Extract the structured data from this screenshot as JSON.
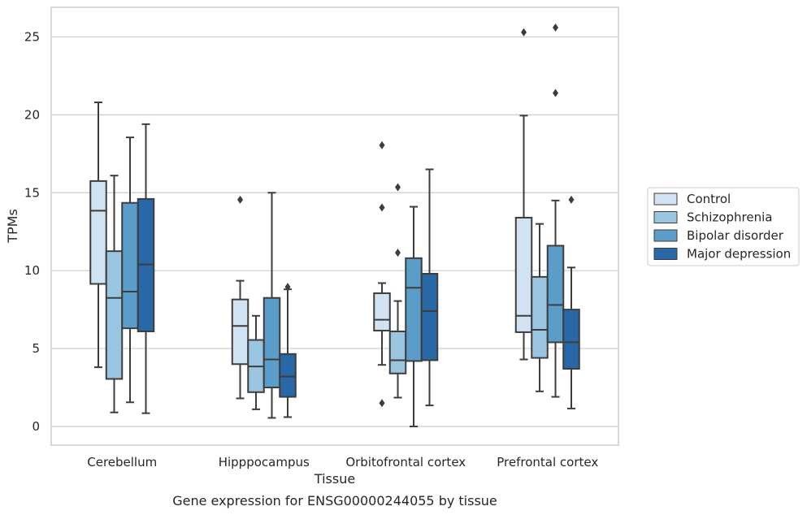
{
  "chart_data": {
    "type": "box",
    "title": "",
    "caption": "Gene expression for ENSG00000244055 by tissue",
    "xlabel": "Tissue",
    "ylabel": "TPMs",
    "ylim": [
      -1.2,
      26.9
    ],
    "yticks": [
      0,
      5,
      10,
      15,
      20,
      25
    ],
    "grid": true,
    "legend_position": "right",
    "categories": [
      "Cerebellum",
      "Hipppocampus",
      "Orbitofrontal cortex",
      "Prefrontal cortex"
    ],
    "series": [
      {
        "name": "Control",
        "color": "#d1e2f2",
        "boxes": [
          {
            "whislo": 3.8,
            "q1": 9.15,
            "med": 13.85,
            "q3": 15.75,
            "whishi": 20.8,
            "fliers": []
          },
          {
            "whislo": 1.8,
            "q1": 4.0,
            "med": 6.45,
            "q3": 8.15,
            "whishi": 9.35,
            "fliers": [
              14.55
            ]
          },
          {
            "whislo": 3.95,
            "q1": 6.15,
            "med": 6.85,
            "q3": 8.55,
            "whishi": 9.2,
            "fliers": [
              18.05,
              14.05,
              1.5
            ]
          },
          {
            "whislo": 4.3,
            "q1": 6.05,
            "med": 7.1,
            "q3": 13.4,
            "whishi": 19.95,
            "fliers": [
              25.3
            ]
          }
        ]
      },
      {
        "name": "Schizophrenia",
        "color": "#9ac5e0",
        "boxes": [
          {
            "whislo": 0.9,
            "q1": 3.05,
            "med": 8.25,
            "q3": 11.25,
            "whishi": 16.1,
            "fliers": []
          },
          {
            "whislo": 1.1,
            "q1": 2.2,
            "med": 3.85,
            "q3": 5.55,
            "whishi": 7.1,
            "fliers": []
          },
          {
            "whislo": 1.85,
            "q1": 3.4,
            "med": 4.25,
            "q3": 6.1,
            "whishi": 8.05,
            "fliers": [
              15.35,
              11.15
            ]
          },
          {
            "whislo": 2.25,
            "q1": 4.4,
            "med": 6.2,
            "q3": 9.6,
            "whishi": 13.0,
            "fliers": []
          }
        ]
      },
      {
        "name": "Bipolar disorder",
        "color": "#5a9dc8",
        "boxes": [
          {
            "whislo": 1.55,
            "q1": 6.3,
            "med": 8.65,
            "q3": 14.35,
            "whishi": 18.55,
            "fliers": []
          },
          {
            "whislo": 0.55,
            "q1": 2.5,
            "med": 4.3,
            "q3": 8.25,
            "whishi": 15.0,
            "fliers": []
          },
          {
            "whislo": 0.0,
            "q1": 4.2,
            "med": 8.9,
            "q3": 10.8,
            "whishi": 14.1,
            "fliers": []
          },
          {
            "whislo": 1.9,
            "q1": 5.4,
            "med": 7.8,
            "q3": 11.6,
            "whishi": 14.5,
            "fliers": [
              25.6,
              21.4
            ]
          }
        ]
      },
      {
        "name": "Major depression",
        "color": "#2868a6",
        "boxes": [
          {
            "whislo": 0.85,
            "q1": 6.1,
            "med": 10.4,
            "q3": 14.6,
            "whishi": 19.4,
            "fliers": []
          },
          {
            "whislo": 0.6,
            "q1": 1.9,
            "med": 3.2,
            "q3": 4.65,
            "whishi": 8.8,
            "fliers": [
              8.95
            ]
          },
          {
            "whislo": 1.35,
            "q1": 4.25,
            "med": 7.4,
            "q3": 9.8,
            "whishi": 16.5,
            "fliers": []
          },
          {
            "whislo": 1.15,
            "q1": 3.7,
            "med": 5.4,
            "q3": 7.5,
            "whishi": 10.2,
            "fliers": [
              14.55
            ]
          }
        ]
      }
    ]
  }
}
